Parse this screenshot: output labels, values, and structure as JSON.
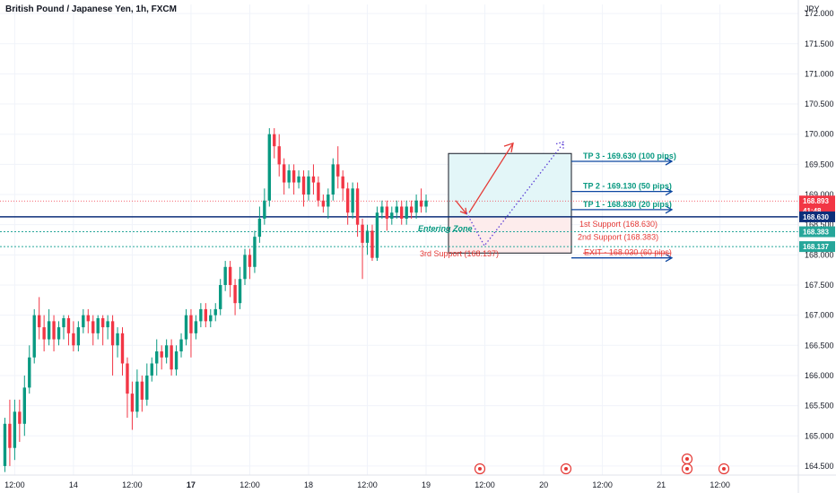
{
  "chart_data": {
    "type": "candlestick",
    "title": "British Pound / Japanese Yen, 1h, FXCM",
    "currency": "JPY",
    "ylim": [
      164.35,
      172.15
    ],
    "y_ticks": [
      "172.000",
      "171.500",
      "171.000",
      "170.500",
      "170.000",
      "169.500",
      "169.000",
      "168.500",
      "168.000",
      "167.500",
      "167.000",
      "166.500",
      "166.000",
      "165.500",
      "165.000",
      "164.500"
    ],
    "x_ticks": [
      {
        "label": "12:00",
        "bold": false,
        "x": 2
      },
      {
        "label": "14",
        "bold": false,
        "x": 14
      },
      {
        "label": "12:00",
        "bold": false,
        "x": 26
      },
      {
        "label": "17",
        "bold": true,
        "x": 38
      },
      {
        "label": "12:00",
        "bold": false,
        "x": 50
      },
      {
        "label": "18",
        "bold": false,
        "x": 62
      },
      {
        "label": "12:00",
        "bold": false,
        "x": 74
      },
      {
        "label": "19",
        "bold": false,
        "x": 86
      },
      {
        "label": "12:00",
        "bold": false,
        "x": 98
      },
      {
        "label": "20",
        "bold": false,
        "x": 110
      },
      {
        "label": "12:00",
        "bold": false,
        "x": 122
      },
      {
        "label": "21",
        "bold": false,
        "x": 134
      },
      {
        "label": "12:00",
        "bold": false,
        "x": 146
      }
    ],
    "x_range": [
      -1,
      162
    ],
    "candles": [
      [
        0,
        164.5,
        165.2,
        164.4,
        165.3
      ],
      [
        1,
        165.2,
        164.8,
        164.5,
        165.6
      ],
      [
        2,
        164.8,
        165.4,
        164.6,
        165.6
      ],
      [
        3,
        165.4,
        165.2,
        164.9,
        165.6
      ],
      [
        4,
        165.2,
        165.8,
        165.0,
        166.0
      ],
      [
        5,
        165.8,
        166.3,
        165.7,
        166.5
      ],
      [
        6,
        166.3,
        167.0,
        166.2,
        167.1
      ],
      [
        7,
        167.0,
        166.8,
        166.6,
        167.3
      ],
      [
        8,
        166.8,
        166.6,
        166.4,
        167.0
      ],
      [
        9,
        166.6,
        166.9,
        166.5,
        167.1
      ],
      [
        10,
        166.9,
        166.6,
        166.4,
        167.0
      ],
      [
        11,
        166.6,
        166.8,
        166.5,
        166.9
      ],
      [
        12,
        166.8,
        166.95,
        166.6,
        167.0
      ],
      [
        13,
        166.95,
        166.7,
        166.5,
        167.0
      ],
      [
        14,
        166.7,
        166.5,
        166.4,
        166.9
      ],
      [
        15,
        166.5,
        166.8,
        166.4,
        166.9
      ],
      [
        16,
        166.8,
        167.0,
        166.7,
        167.1
      ],
      [
        17,
        167.0,
        166.9,
        166.7,
        167.1
      ],
      [
        18,
        166.9,
        166.7,
        166.5,
        167.0
      ],
      [
        19,
        166.7,
        166.95,
        166.6,
        167.0
      ],
      [
        20,
        166.95,
        166.8,
        166.5,
        167.0
      ],
      [
        21,
        166.8,
        166.9,
        166.6,
        167.0
      ],
      [
        22,
        166.9,
        166.5,
        166.0,
        167.0
      ],
      [
        23,
        166.5,
        166.7,
        166.3,
        166.8
      ],
      [
        24,
        166.7,
        166.2,
        166.0,
        166.8
      ],
      [
        25,
        166.2,
        165.7,
        165.3,
        166.3
      ],
      [
        26,
        165.7,
        165.4,
        165.1,
        165.9
      ],
      [
        27,
        165.4,
        165.9,
        165.3,
        166.1
      ],
      [
        28,
        165.9,
        165.6,
        165.4,
        166.0
      ],
      [
        29,
        165.6,
        166.0,
        165.5,
        166.2
      ],
      [
        30,
        166.0,
        166.2,
        165.9,
        166.3
      ],
      [
        31,
        166.2,
        166.4,
        166.0,
        166.6
      ],
      [
        32,
        166.4,
        166.3,
        166.1,
        166.5
      ],
      [
        33,
        166.3,
        166.5,
        166.2,
        166.6
      ],
      [
        34,
        166.5,
        166.1,
        166.0,
        166.6
      ],
      [
        35,
        166.1,
        166.4,
        166.0,
        166.5
      ],
      [
        36,
        166.4,
        166.6,
        166.3,
        166.7
      ],
      [
        37,
        166.6,
        167.0,
        166.5,
        167.1
      ],
      [
        38,
        167.0,
        166.7,
        166.3,
        167.1
      ],
      [
        39,
        166.7,
        166.9,
        166.6,
        167.0
      ],
      [
        40,
        166.9,
        167.1,
        166.8,
        167.2
      ],
      [
        41,
        167.1,
        166.9,
        166.8,
        167.2
      ],
      [
        42,
        166.9,
        167.0,
        166.8,
        167.1
      ],
      [
        43,
        167.0,
        167.1,
        166.9,
        167.2
      ],
      [
        44,
        167.1,
        167.5,
        167.0,
        167.6
      ],
      [
        45,
        167.5,
        167.8,
        167.4,
        167.9
      ],
      [
        46,
        167.8,
        167.5,
        167.3,
        167.9
      ],
      [
        47,
        167.5,
        167.2,
        167.0,
        167.6
      ],
      [
        48,
        167.2,
        167.6,
        167.1,
        167.8
      ],
      [
        49,
        167.6,
        168.0,
        167.5,
        168.1
      ],
      [
        50,
        168.0,
        167.8,
        167.6,
        168.1
      ],
      [
        51,
        167.8,
        168.3,
        167.7,
        168.4
      ],
      [
        52,
        168.3,
        168.6,
        168.2,
        168.8
      ],
      [
        53,
        168.6,
        168.9,
        168.5,
        169.1
      ],
      [
        54,
        168.9,
        170.0,
        168.8,
        170.1
      ],
      [
        55,
        170.0,
        169.8,
        169.6,
        170.1
      ],
      [
        56,
        169.8,
        169.5,
        169.3,
        170.0
      ],
      [
        57,
        169.5,
        169.2,
        169.0,
        169.6
      ],
      [
        58,
        169.2,
        169.4,
        169.1,
        169.5
      ],
      [
        59,
        169.4,
        169.2,
        169.0,
        169.5
      ],
      [
        60,
        169.2,
        169.3,
        169.1,
        169.4
      ],
      [
        61,
        169.3,
        169.0,
        168.8,
        169.4
      ],
      [
        62,
        169.0,
        169.3,
        168.9,
        169.4
      ],
      [
        63,
        169.3,
        169.2,
        169.0,
        169.5
      ],
      [
        64,
        169.2,
        168.9,
        168.8,
        169.3
      ],
      [
        65,
        168.9,
        168.8,
        168.7,
        169.0
      ],
      [
        66,
        168.8,
        169.0,
        168.6,
        169.1
      ],
      [
        67,
        169.0,
        169.5,
        168.9,
        169.6
      ],
      [
        68,
        169.5,
        169.3,
        169.1,
        169.8
      ],
      [
        69,
        169.3,
        169.1,
        168.9,
        169.4
      ],
      [
        70,
        169.1,
        168.7,
        168.5,
        169.2
      ],
      [
        71,
        168.7,
        169.1,
        168.6,
        169.2
      ],
      [
        72,
        169.1,
        168.5,
        168.3,
        169.2
      ],
      [
        73,
        168.5,
        168.2,
        167.6,
        168.6
      ],
      [
        74,
        168.2,
        168.4,
        168.0,
        168.5
      ],
      [
        75,
        168.4,
        167.95,
        167.9,
        168.5
      ],
      [
        76,
        167.95,
        168.7,
        167.9,
        168.8
      ],
      [
        77,
        168.7,
        168.8,
        168.6,
        168.9
      ],
      [
        78,
        168.8,
        168.6,
        168.4,
        168.9
      ],
      [
        79,
        168.6,
        168.7,
        168.5,
        168.8
      ],
      [
        80,
        168.7,
        168.8,
        168.6,
        168.9
      ],
      [
        81,
        168.8,
        168.6,
        168.5,
        168.9
      ],
      [
        82,
        168.6,
        168.8,
        168.5,
        168.9
      ],
      [
        83,
        168.8,
        168.7,
        168.6,
        168.9
      ],
      [
        84,
        168.7,
        168.9,
        168.6,
        169.0
      ],
      [
        85,
        168.9,
        168.8,
        168.7,
        169.1
      ],
      [
        86,
        168.8,
        168.9,
        168.7,
        169.0
      ]
    ],
    "levels": [
      {
        "name": "current",
        "value": 168.893,
        "tag": "168.893",
        "tag2": "41:48"
      },
      {
        "name": "entry",
        "value": 168.63,
        "tag": "168.630"
      },
      {
        "name": "support2",
        "value": 168.383,
        "tag": "168.383"
      },
      {
        "name": "support3",
        "value": 168.137,
        "tag": "168.137"
      }
    ],
    "annotations": {
      "tp3": "TP 3 - 169.630 (100 pips)",
      "tp2": "TP 2 - 169.130 (50 pips)",
      "tp1": "TP 1 - 168.830 (20 pips)",
      "support1": "1st Support (168.630)",
      "support2": "2nd Support (168.383)",
      "support3": "3rd Support (168.137)",
      "exit": "EXIT - 168.030 (60 pips)",
      "entering": "Entering Zone"
    },
    "colors": {
      "up": "#089981",
      "down": "#f23645",
      "entry_line": "#0d2f7a",
      "tp_arrow": "#0d47a1",
      "up_arrow": "#e53935",
      "dotted": "#5c3fd6"
    }
  }
}
